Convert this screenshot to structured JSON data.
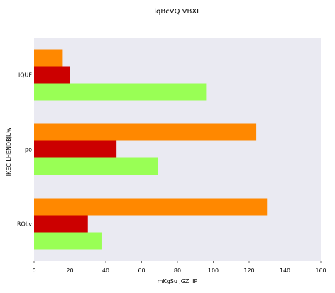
{
  "chart_data": {
    "type": "bar",
    "orientation": "horizontal",
    "title": "lqBcVQ VBXL",
    "xlabel": "mKgSu jGZl IP",
    "ylabel": "IKEC LHENDBJUw",
    "categories": [
      "lQUF",
      "po",
      "ROLv"
    ],
    "series": [
      {
        "color": "#ff8800",
        "values": [
          16,
          124,
          130
        ]
      },
      {
        "color": "#cc0000",
        "values": [
          20,
          46,
          30
        ]
      },
      {
        "color": "#99ff55",
        "values": [
          96,
          69,
          38
        ]
      }
    ],
    "xlim": [
      0,
      160
    ],
    "xticks": [
      0,
      20,
      40,
      60,
      80,
      100,
      120,
      140,
      160
    ],
    "background_color": "#eaeaf2",
    "grid": false,
    "legend": "none"
  }
}
